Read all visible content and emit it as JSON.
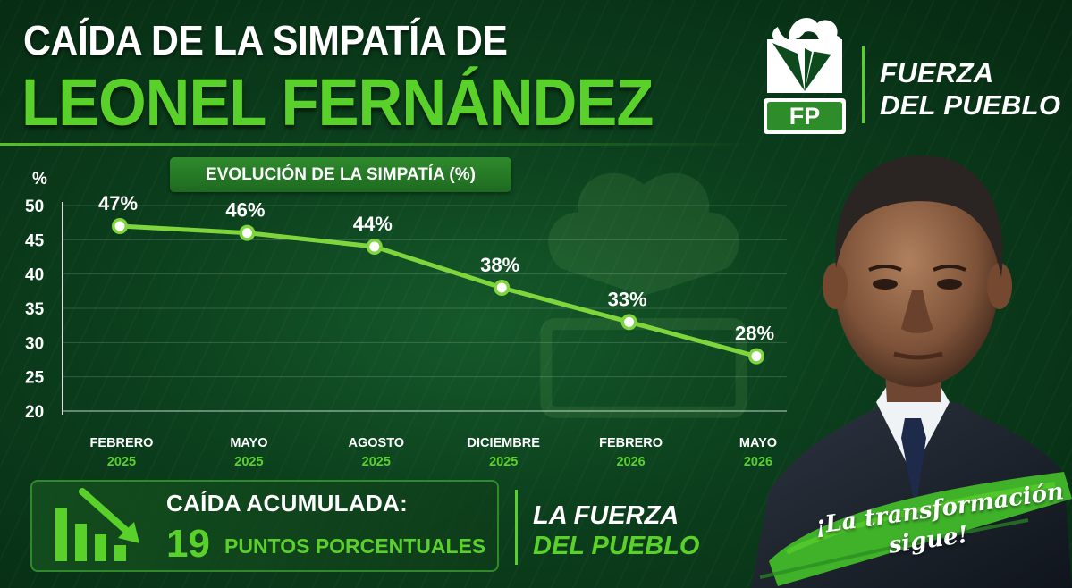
{
  "header": {
    "title_line1": "CAÍDA DE LA SIMPATÍA DE",
    "title_line2": "LEONEL FERNÁNDEZ"
  },
  "brand": {
    "logo_text": "FP",
    "name_line1": "FUERZA",
    "name_line2": "DEL PUEBLO"
  },
  "chart_data": {
    "type": "line",
    "title": "EVOLUCIÓN DE LA SIMPATÍA (%)",
    "ylabel": "%",
    "ylim": [
      20,
      50
    ],
    "yticks": [
      20,
      25,
      30,
      35,
      40,
      45,
      50
    ],
    "grid": true,
    "categories": [
      {
        "month": "FEBRERO",
        "year": "2025"
      },
      {
        "month": "MAYO",
        "year": "2025"
      },
      {
        "month": "AGOSTO",
        "year": "2025"
      },
      {
        "month": "DICIEMBRE",
        "year": "2025"
      },
      {
        "month": "FEBRERO",
        "year": "2026"
      },
      {
        "month": "MAYO",
        "year": "2026"
      }
    ],
    "values": [
      47,
      46,
      44,
      38,
      33,
      28
    ],
    "data_labels": [
      "47%",
      "46%",
      "44%",
      "38%",
      "33%",
      "28%"
    ]
  },
  "summary": {
    "label": "CAÍDA ACUMULADA:",
    "value": "19",
    "unit": "PUNTOS PORCENTUALES"
  },
  "slogan": {
    "line1": "LA FUERZA",
    "line2": "DEL PUEBLO"
  },
  "brush_text": {
    "line1": "¡La transformación",
    "line2": "sigue!"
  },
  "colors": {
    "accent": "#5ad12a",
    "background": "#0b3e1c",
    "line": "#7ed63c"
  }
}
